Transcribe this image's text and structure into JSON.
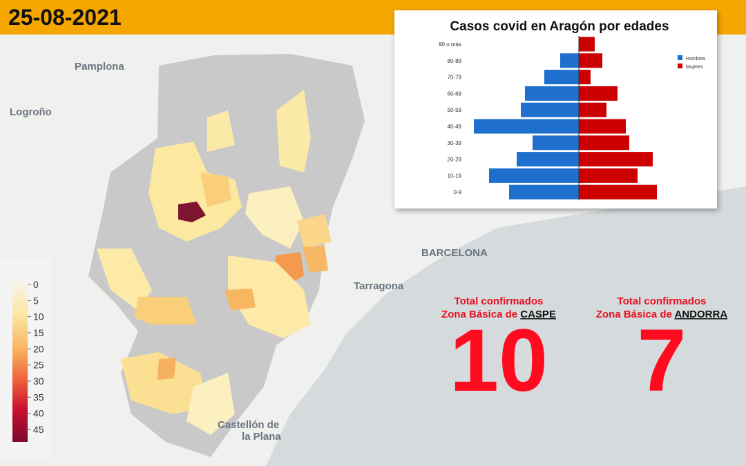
{
  "header": {
    "date": "25-08-2021"
  },
  "map": {
    "places": [
      "Pamplona",
      "Logroño",
      "BARCELONA",
      "Tarragona",
      "Castellón de",
      "la Plana"
    ]
  },
  "colorbar": {
    "ticks": [
      0,
      5,
      10,
      15,
      20,
      25,
      30,
      35,
      40,
      45
    ],
    "lim": [
      0,
      48
    ]
  },
  "chart_data": {
    "type": "pyramid",
    "title": "Casos covid en Aragón por edades",
    "categories": [
      "90 o más",
      "80-89",
      "70-79",
      "60-69",
      "50-59",
      "40-49",
      "30-39",
      "20-29",
      "10-19",
      "0-9"
    ],
    "series": [
      {
        "name": "Hombres",
        "color": "#1f6fcf",
        "values": [
          0,
          27,
          50,
          78,
          84,
          152,
          67,
          90,
          130,
          101
        ]
      },
      {
        "name": "Mujeres",
        "color": "#cc0000",
        "values": [
          23,
          34,
          17,
          56,
          40,
          68,
          73,
          107,
          85,
          113
        ]
      }
    ]
  },
  "stats": [
    {
      "label": "Total confirmados",
      "zone_prefix": "Zona Básica de",
      "zone": "CASPE",
      "value": "10"
    },
    {
      "label": "Total confirmados",
      "zone_prefix": "Zona Básica de",
      "zone": "ANDORRA",
      "value": "7"
    }
  ]
}
